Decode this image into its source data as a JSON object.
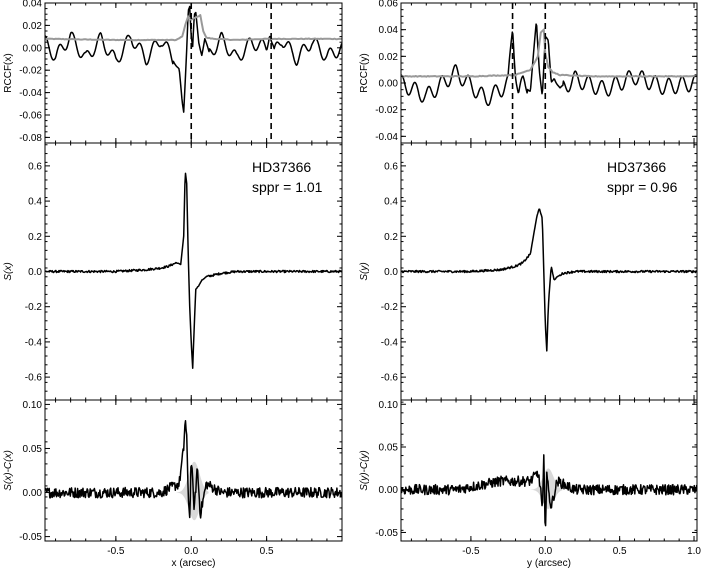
{
  "chart_data": [
    {
      "type": "line",
      "panel": "top-left",
      "ylabel": "RCCF(x)",
      "xlim": [
        -0.97,
        1.0
      ],
      "ylim": [
        -0.085,
        0.04
      ],
      "yticks": [
        -0.08,
        -0.06,
        -0.04,
        -0.02,
        0.0,
        0.02,
        0.04
      ],
      "ytick_labels": [
        "-0.08",
        "-0.06",
        "-0.04",
        "-0.02",
        "0.00",
        "0.02",
        "0.04"
      ],
      "grid": false,
      "series": [
        {
          "color": "#000000",
          "x": [
            -0.97,
            -0.9,
            -0.8,
            -0.7,
            -0.6,
            -0.5,
            -0.4,
            -0.3,
            -0.2,
            -0.12,
            -0.08,
            -0.06,
            -0.05,
            -0.04,
            -0.03,
            -0.02,
            -0.01,
            0.0,
            0.01,
            0.02,
            0.03,
            0.05,
            0.07,
            0.09,
            0.12,
            0.2,
            0.3,
            0.4,
            0.5,
            0.52,
            0.53,
            0.55,
            0.6,
            0.7,
            0.8,
            0.9,
            1.0
          ],
          "y": [
            0.005,
            -0.008,
            0.01,
            -0.01,
            0.008,
            -0.012,
            0.01,
            -0.01,
            0.008,
            -0.01,
            -0.02,
            -0.05,
            -0.058,
            -0.03,
            0.0,
            0.035,
            0.038,
            0.01,
            0.0,
            0.028,
            0.03,
            0.005,
            -0.005,
            0.008,
            -0.006,
            0.008,
            -0.01,
            0.005,
            0.0,
            0.017,
            0.01,
            -0.005,
            0.008,
            -0.01,
            0.006,
            -0.008,
            0.0
          ]
        },
        {
          "color": "#999999",
          "x": [
            -0.97,
            -0.5,
            -0.2,
            -0.1,
            -0.06,
            -0.04,
            -0.02,
            0.0,
            0.03,
            0.06,
            0.08,
            0.1,
            0.15,
            0.3,
            0.5,
            0.7,
            1.0
          ],
          "y": [
            0.008,
            0.007,
            0.007,
            0.007,
            0.01,
            0.02,
            0.028,
            0.025,
            0.027,
            0.029,
            0.015,
            0.009,
            0.008,
            0.007,
            0.008,
            0.008,
            0.008
          ]
        }
      ],
      "vlines": [
        0.0,
        0.53
      ]
    },
    {
      "type": "line",
      "panel": "middle-left",
      "ylabel": "S(x)",
      "xlim": [
        -0.97,
        1.0
      ],
      "ylim": [
        -0.73,
        0.73
      ],
      "yticks": [
        -0.6,
        -0.4,
        -0.2,
        0.0,
        0.2,
        0.4,
        0.6
      ],
      "ytick_labels": [
        "-0.6",
        "-0.4",
        "-0.2",
        "0.0",
        "0.2",
        "0.4",
        "0.6"
      ],
      "annotation": [
        "HD37366",
        "sppr = 1.01"
      ],
      "series": [
        {
          "color": "#000000",
          "x": [
            -0.97,
            -0.5,
            -0.3,
            -0.2,
            -0.15,
            -0.1,
            -0.07,
            -0.05,
            -0.04,
            -0.03,
            -0.02,
            -0.01,
            0.0,
            0.01,
            0.02,
            0.03,
            0.05,
            0.07,
            0.1,
            0.15,
            0.2,
            0.3,
            0.5,
            0.7,
            1.0
          ],
          "y": [
            0.0,
            0.0,
            0.01,
            0.02,
            0.03,
            0.05,
            0.04,
            0.2,
            0.57,
            0.5,
            0.1,
            -0.2,
            -0.4,
            -0.55,
            -0.3,
            -0.1,
            -0.08,
            -0.05,
            -0.03,
            -0.02,
            -0.01,
            0.0,
            0.0,
            0.0,
            0.0
          ]
        }
      ]
    },
    {
      "type": "line",
      "panel": "bottom-left",
      "ylabel": "S(x)-C(x)",
      "xlabel": "x (arcsec)",
      "xlim": [
        -0.97,
        1.0
      ],
      "ylim": [
        -0.055,
        0.105
      ],
      "yticks": [
        -0.05,
        0.0,
        0.05,
        0.1
      ],
      "ytick_labels": [
        "-0.05",
        "0.00",
        "0.05",
        "0.10"
      ],
      "xticks": [
        -0.5,
        0.0,
        0.5
      ],
      "xtick_labels": [
        "-0.5",
        "0.0",
        "0.5"
      ],
      "series": [
        {
          "color": "#000000",
          "x": [
            -0.97,
            -0.6,
            -0.2,
            -0.08,
            -0.05,
            -0.04,
            -0.03,
            -0.02,
            -0.01,
            0.0,
            0.02,
            0.04,
            0.06,
            0.1,
            0.2,
            0.5,
            1.0
          ],
          "y": [
            0.0,
            0.0,
            0.0,
            0.01,
            0.05,
            0.085,
            0.06,
            0.0,
            -0.03,
            0.04,
            -0.02,
            0.03,
            -0.025,
            0.01,
            0.0,
            0.0,
            0.0
          ]
        }
      ]
    },
    {
      "type": "line",
      "panel": "top-right",
      "ylabel": "RCCF(y)",
      "xlim": [
        -0.97,
        1.02
      ],
      "ylim": [
        -0.045,
        0.06
      ],
      "yticks": [
        -0.04,
        -0.02,
        0.0,
        0.02,
        0.04,
        0.06
      ],
      "ytick_labels": [
        "-0.04",
        "-0.02",
        "0.00",
        "0.02",
        "0.04",
        "0.06"
      ],
      "series": [
        {
          "color": "#000000",
          "x": [
            -0.97,
            -0.8,
            -0.6,
            -0.4,
            -0.3,
            -0.25,
            -0.22,
            -0.2,
            -0.18,
            -0.15,
            -0.1,
            -0.06,
            -0.04,
            -0.02,
            0.0,
            0.02,
            0.04,
            0.06,
            0.1,
            0.2,
            0.4,
            0.6,
            0.8,
            1.0
          ],
          "y": [
            0.0,
            -0.01,
            0.008,
            -0.012,
            -0.005,
            0.0,
            0.042,
            0.01,
            -0.008,
            0.0,
            -0.005,
            0.045,
            0.01,
            -0.008,
            0.035,
            0.03,
            0.0,
            0.005,
            -0.005,
            0.003,
            -0.005,
            0.005,
            -0.003,
            0.0
          ]
        },
        {
          "color": "#999999",
          "x": [
            -0.97,
            -0.5,
            -0.2,
            -0.1,
            -0.05,
            -0.03,
            -0.01,
            0.0,
            0.02,
            0.05,
            0.1,
            0.3,
            0.6,
            1.0
          ],
          "y": [
            0.005,
            0.005,
            0.006,
            0.01,
            0.02,
            0.038,
            0.04,
            0.022,
            0.012,
            0.008,
            0.006,
            0.005,
            0.005,
            0.005
          ]
        }
      ],
      "vlines": [
        -0.22,
        0.0
      ]
    },
    {
      "type": "line",
      "panel": "middle-right",
      "ylabel": "S(y)",
      "xlim": [
        -0.97,
        1.02
      ],
      "ylim": [
        -0.73,
        0.73
      ],
      "yticks": [
        -0.6,
        -0.4,
        -0.2,
        0.0,
        0.2,
        0.4,
        0.6
      ],
      "ytick_labels": [
        "-0.6",
        "-0.4",
        "-0.2",
        "0.0",
        "0.2",
        "0.4",
        "0.6"
      ],
      "annotation": [
        "HD37366",
        "sppr = 0.96"
      ],
      "series": [
        {
          "color": "#000000",
          "x": [
            -0.97,
            -0.5,
            -0.3,
            -0.2,
            -0.15,
            -0.1,
            -0.08,
            -0.06,
            -0.04,
            -0.02,
            -0.01,
            0.0,
            0.01,
            0.02,
            0.04,
            0.06,
            0.08,
            0.12,
            0.2,
            0.4,
            0.7,
            1.0
          ],
          "y": [
            0.0,
            0.0,
            0.01,
            0.03,
            0.05,
            0.1,
            0.2,
            0.3,
            0.36,
            0.3,
            0.0,
            -0.3,
            -0.45,
            -0.2,
            0.03,
            -0.05,
            -0.03,
            -0.01,
            0.0,
            0.0,
            0.0,
            0.0
          ]
        }
      ]
    },
    {
      "type": "line",
      "panel": "bottom-right",
      "ylabel": "S(y)-C(y)",
      "xlabel": "y (arcsec)",
      "xlim": [
        -0.97,
        1.02
      ],
      "ylim": [
        -0.06,
        0.105
      ],
      "yticks": [
        -0.05,
        0.0,
        0.05,
        0.1
      ],
      "ytick_labels": [
        "-0.05",
        "0.00",
        "0.05",
        "0.10"
      ],
      "xticks": [
        -0.5,
        0.0,
        0.5,
        1.0
      ],
      "xtick_labels": [
        "-0.5",
        "0.0",
        "0.5",
        "1.0"
      ],
      "series": [
        {
          "color": "#000000",
          "x": [
            -0.97,
            -0.6,
            -0.3,
            -0.1,
            -0.05,
            -0.03,
            -0.02,
            -0.01,
            0.0,
            0.01,
            0.02,
            0.04,
            0.08,
            0.2,
            0.5,
            1.0
          ],
          "y": [
            0.0,
            0.0,
            0.01,
            0.01,
            0.02,
            0.0,
            -0.03,
            0.035,
            -0.05,
            0.02,
            0.0,
            -0.02,
            0.01,
            0.0,
            0.0,
            0.0
          ]
        }
      ]
    }
  ]
}
